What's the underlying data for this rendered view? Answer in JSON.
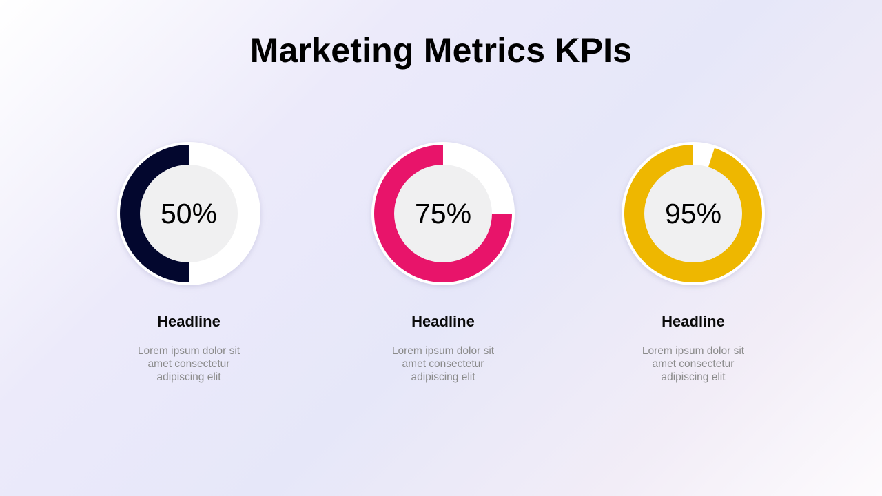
{
  "title": "Marketing Metrics KPIs",
  "chart_data": {
    "type": "pie",
    "variant": "donut-progress",
    "items": [
      {
        "label": "50%",
        "value": 50,
        "color": "#03072e",
        "headline": "Headline",
        "text": "Lorem ipsum dolor sit amet consectetur adipiscing elit"
      },
      {
        "label": "75%",
        "value": 75,
        "color": "#e8146a",
        "headline": "Headline",
        "text": "Lorem ipsum dolor sit amet consectetur adipiscing elit"
      },
      {
        "label": "95%",
        "value": 95,
        "color": "#eeb700",
        "headline": "Headline",
        "text": "Lorem ipsum dolor sit amet consectetur adipiscing elit"
      }
    ]
  },
  "colors": {
    "ring_track": "#ffffff",
    "center_fill": "#f0f0f1"
  }
}
